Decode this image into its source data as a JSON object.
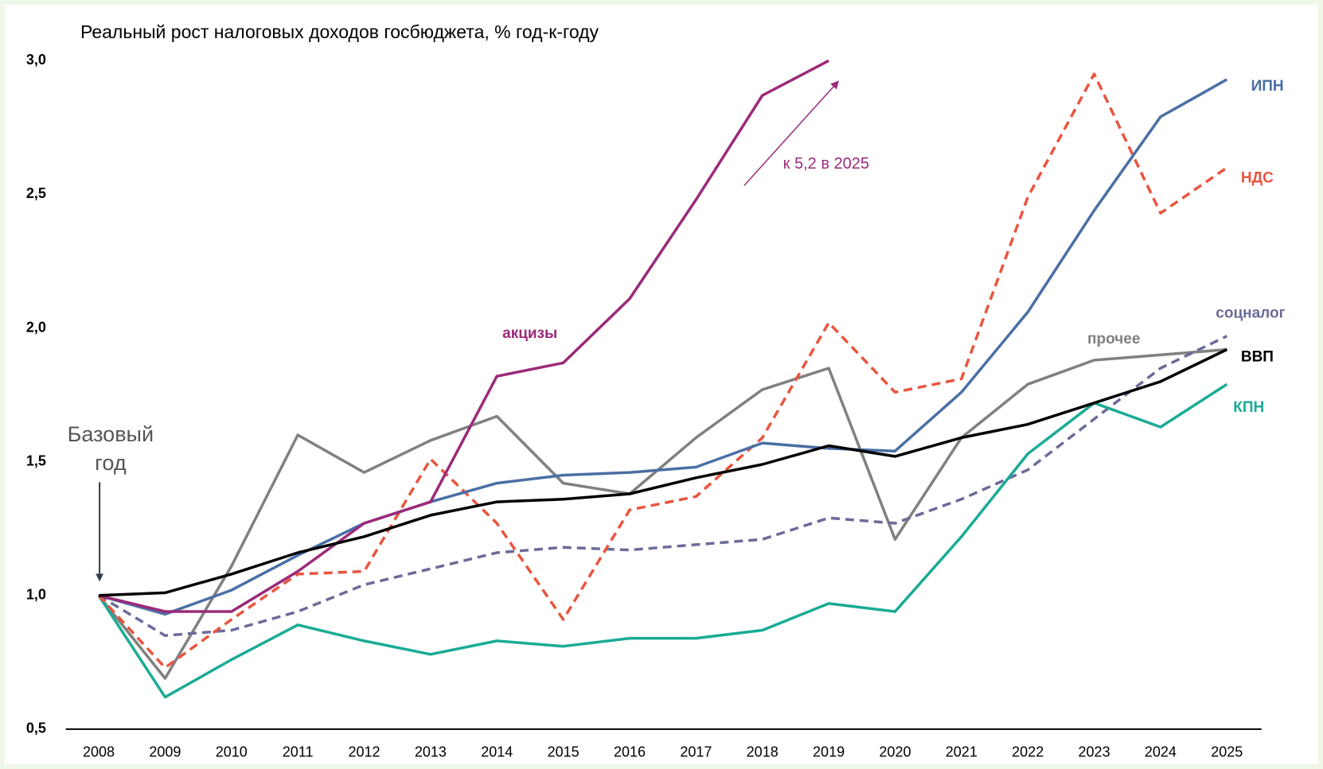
{
  "chart_data": {
    "type": "line",
    "title": "Реальный рост налоговых доходов госбюджета, %  год-к-году",
    "categories": [
      "2008",
      "2009",
      "2010",
      "2011",
      "2012",
      "2013",
      "2014",
      "2015",
      "2016",
      "2017",
      "2018",
      "2019",
      "2020",
      "2021",
      "2022",
      "2023",
      "2024",
      "2025"
    ],
    "ylim": [
      0.5,
      3.0
    ],
    "yticks": [
      {
        "value": 0.5,
        "label": "0,5"
      },
      {
        "value": 1.0,
        "label": "1,0"
      },
      {
        "value": 1.5,
        "label": "1,5"
      },
      {
        "value": 2.0,
        "label": "2,0"
      },
      {
        "value": 2.5,
        "label": "2,5"
      },
      {
        "value": 3.0,
        "label": "3,0"
      }
    ],
    "grid": false,
    "series": [
      {
        "name": "прочее",
        "color": "#808080",
        "dash": false,
        "values": [
          1.0,
          0.69,
          1.11,
          1.6,
          1.46,
          1.58,
          1.67,
          1.42,
          1.38,
          1.59,
          1.77,
          1.85,
          1.21,
          1.59,
          1.79,
          1.88,
          1.9,
          1.92
        ]
      },
      {
        "name": "соцналог",
        "color": "#6b6b9a",
        "dash": true,
        "values": [
          1.0,
          0.85,
          0.87,
          0.94,
          1.04,
          1.1,
          1.16,
          1.18,
          1.17,
          1.19,
          1.21,
          1.29,
          1.27,
          1.36,
          1.47,
          1.66,
          1.85,
          1.97
        ]
      },
      {
        "name": "КПН",
        "color": "#1aab95",
        "dash": false,
        "values": [
          1.0,
          0.62,
          0.76,
          0.89,
          0.83,
          0.78,
          0.83,
          0.81,
          0.84,
          0.84,
          0.87,
          0.97,
          0.94,
          1.22,
          1.53,
          1.72,
          1.63,
          1.79
        ]
      },
      {
        "name": "НДС",
        "color": "#e8553e",
        "dash": true,
        "values": [
          1.0,
          0.73,
          0.91,
          1.08,
          1.09,
          1.51,
          1.27,
          0.91,
          1.32,
          1.37,
          1.59,
          2.02,
          1.76,
          1.81,
          2.49,
          2.95,
          2.43,
          2.6
        ]
      },
      {
        "name": "ИПН",
        "color": "#4a6fa5",
        "dash": false,
        "values": [
          1.0,
          0.93,
          1.02,
          1.15,
          1.27,
          1.35,
          1.42,
          1.45,
          1.46,
          1.48,
          1.57,
          1.55,
          1.54,
          1.76,
          2.06,
          2.44,
          2.79,
          2.93
        ]
      },
      {
        "name": "акцизы",
        "color": "#9b2a7a",
        "dash": false,
        "values": [
          1.0,
          0.94,
          0.94,
          1.09,
          1.27,
          1.35,
          1.82,
          1.87,
          2.11,
          2.48,
          2.87,
          3.0,
          null,
          null,
          null,
          null,
          null,
          null
        ]
      },
      {
        "name": "ВВП",
        "color": "#000000",
        "dash": false,
        "values": [
          1.0,
          1.01,
          1.08,
          1.16,
          1.22,
          1.3,
          1.35,
          1.36,
          1.38,
          1.44,
          1.49,
          1.56,
          1.52,
          1.59,
          1.64,
          1.72,
          1.8,
          1.92
        ]
      }
    ],
    "annotations": {
      "base_year": [
        "Базовый",
        "год"
      ],
      "arrow_note": "к 5,2 в 2025"
    }
  }
}
